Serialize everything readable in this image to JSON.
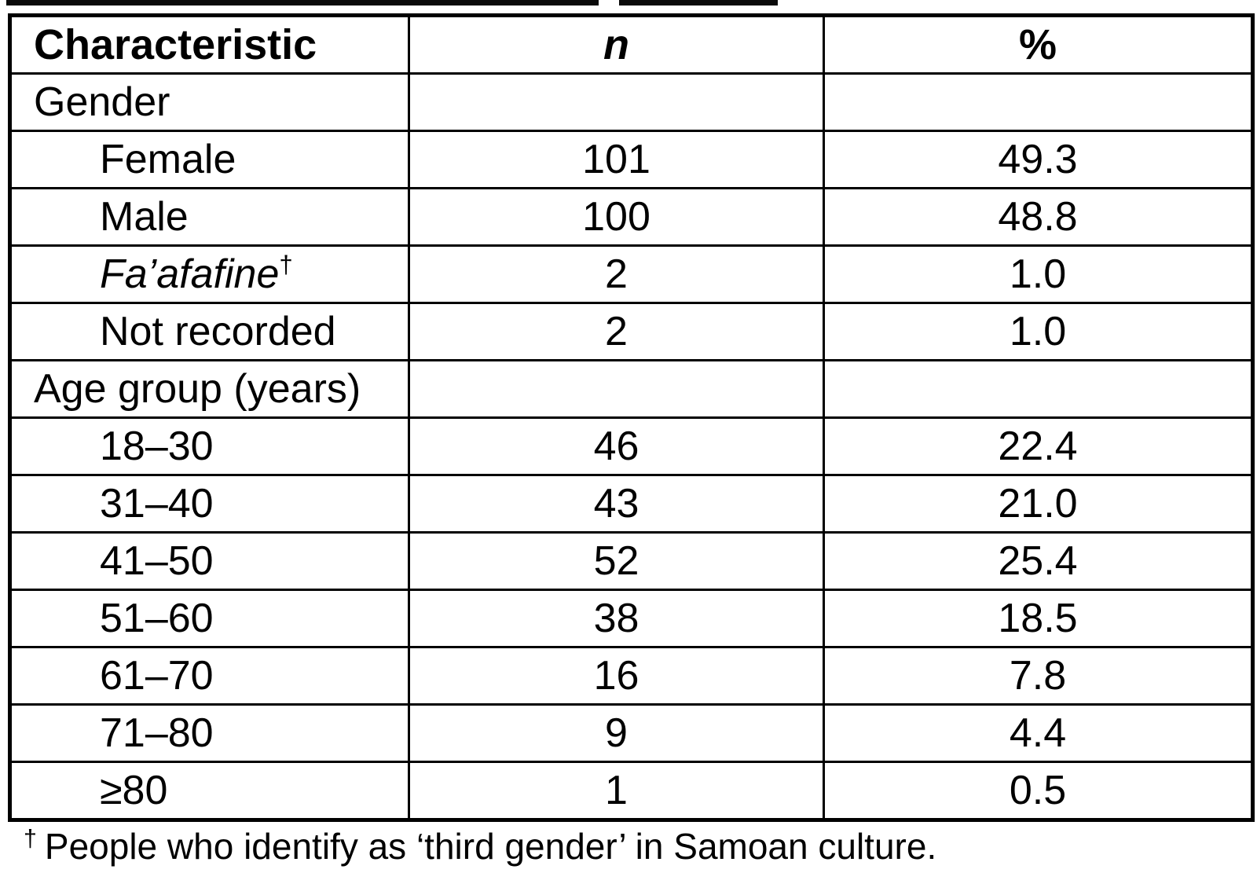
{
  "table": {
    "columns": [
      "Characteristic",
      "n",
      "%"
    ],
    "rows": [
      {
        "label": "Gender",
        "n": "",
        "pct": "",
        "type": "section"
      },
      {
        "label": "Female",
        "n": "101",
        "pct": "49.3",
        "type": "item"
      },
      {
        "label": "Male",
        "n": "100",
        "pct": "48.8",
        "type": "item"
      },
      {
        "label": "Fa’afafine",
        "sup": "†",
        "n": "2",
        "pct": "1.0",
        "type": "item-italic"
      },
      {
        "label": "Not recorded",
        "n": "2",
        "pct": "1.0",
        "type": "item"
      },
      {
        "label": "Age group (years)",
        "n": "",
        "pct": "",
        "type": "section"
      },
      {
        "label": "18–30",
        "n": "46",
        "pct": "22.4",
        "type": "item"
      },
      {
        "label": "31–40",
        "n": "43",
        "pct": "21.0",
        "type": "item"
      },
      {
        "label": "41–50",
        "n": "52",
        "pct": "25.4",
        "type": "item"
      },
      {
        "label": "51–60",
        "n": "38",
        "pct": "18.5",
        "type": "item"
      },
      {
        "label": "61–70",
        "n": "16",
        "pct": "7.8",
        "type": "item"
      },
      {
        "label": "71–80",
        "n": "9",
        "pct": "4.4",
        "type": "item"
      },
      {
        "label": "≥80",
        "n": "1",
        "pct": "0.5",
        "type": "item"
      }
    ]
  },
  "footnote": {
    "dagger": "†",
    "text": "People who identify as ‘third gender’ in Samoan culture."
  }
}
